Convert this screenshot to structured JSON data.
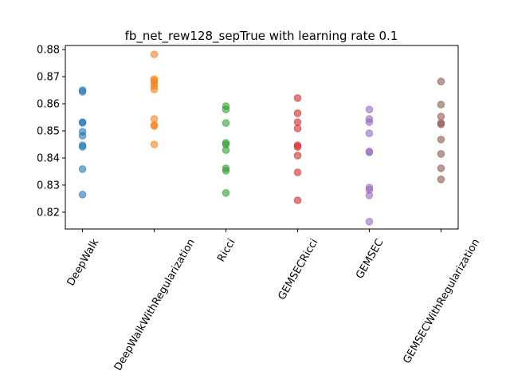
{
  "chart_data": {
    "type": "strip",
    "title": "fb_net_rew128_sepTrue with learning rate 0.1",
    "categories": [
      "DeepWalk",
      "DeepWalkWithRegularization",
      "Ricci",
      "GEMSECRicci",
      "GEMSEC",
      "GEMSECWithRegularization"
    ],
    "colors": [
      "#1f77b4",
      "#ff7f0e",
      "#2ca02c",
      "#d62728",
      "#9467bd",
      "#8c564b"
    ],
    "points": [
      [
        0.865,
        0.8644,
        0.8532,
        0.853,
        0.8497,
        0.8482,
        0.8447,
        0.8441,
        0.8359,
        0.8265
      ],
      [
        0.8782,
        0.8691,
        0.8685,
        0.8676,
        0.8665,
        0.8653,
        0.8544,
        0.8521,
        0.8518,
        0.845
      ],
      [
        0.8591,
        0.8579,
        0.8529,
        0.8456,
        0.845,
        0.8429,
        0.8362,
        0.8353,
        0.8271
      ],
      [
        0.8621,
        0.8565,
        0.8532,
        0.8509,
        0.8447,
        0.8441,
        0.8409,
        0.8347,
        0.8244
      ],
      [
        0.8579,
        0.8544,
        0.8532,
        0.8491,
        0.8424,
        0.8421,
        0.8291,
        0.8282,
        0.8262,
        0.8165
      ],
      [
        0.8682,
        0.8597,
        0.8553,
        0.8529,
        0.8524,
        0.8468,
        0.8415,
        0.8362,
        0.8321
      ]
    ],
    "ylim": [
      0.8138,
      0.8815
    ],
    "yticks": [
      0.82,
      0.83,
      0.84,
      0.85,
      0.86,
      0.87,
      0.88
    ]
  }
}
